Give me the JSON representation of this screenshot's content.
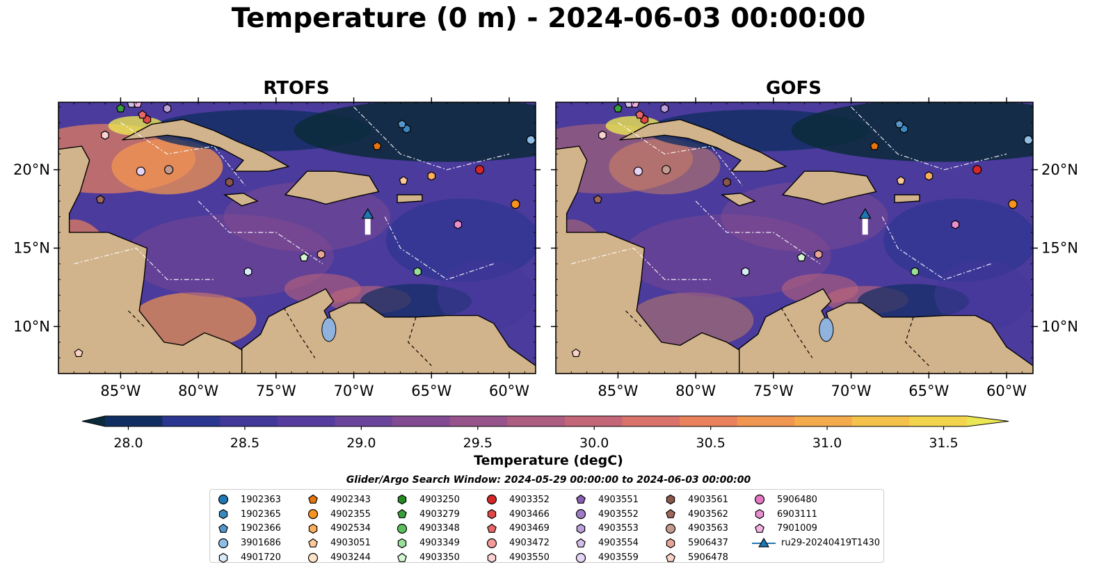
{
  "title": "Temperature (0 m) - 2024-06-03 00:00:00",
  "panels": [
    {
      "id": "rtofs",
      "title": "RTOFS"
    },
    {
      "id": "gofs",
      "title": "GOFS"
    }
  ],
  "chart_data": {
    "type": "heatmap",
    "subtype": "map-contour",
    "x_ticks": [
      "85°W",
      "80°W",
      "75°W",
      "70°W",
      "65°W",
      "60°W"
    ],
    "x_tick_values": [
      -85,
      -80,
      -75,
      -70,
      -65,
      -60
    ],
    "y_ticks": [
      "20°N",
      "15°N",
      "10°N"
    ],
    "y_tick_values": [
      20,
      15,
      10
    ],
    "xlim": [
      -89,
      -58.3
    ],
    "ylim": [
      7,
      24.3
    ],
    "colorbar": {
      "label": "Temperature (degC)",
      "range": [
        27.9,
        31.6
      ],
      "ticks": [
        "28.0",
        "28.5",
        "29.0",
        "29.5",
        "30.0",
        "30.5",
        "31.0",
        "31.5"
      ],
      "tick_values": [
        28.0,
        28.5,
        29.0,
        29.5,
        30.0,
        30.5,
        31.0,
        31.5
      ],
      "extend": "both",
      "colors": [
        "#0b2a3a",
        "#112e63",
        "#2a3690",
        "#41389a",
        "#553c9e",
        "#6b449b",
        "#824a92",
        "#97538b",
        "#ad5c82",
        "#c26678",
        "#d8726b",
        "#e9815c",
        "#f19650",
        "#f4ab4c",
        "#f4c24a",
        "#f3d54d",
        "#ebe653"
      ]
    },
    "search_window": "Glider/Argo Search Window: 2024-05-29 00:00:00 to 2024-06-03 00:00:00",
    "series": [
      {
        "name": "1902363",
        "marker": "circle",
        "color": "#1f77b4",
        "x": null,
        "y": null
      },
      {
        "name": "1902365",
        "marker": "hexagon",
        "color": "#3a88c0",
        "x": -66.6,
        "y": 22.6
      },
      {
        "name": "1902366",
        "marker": "pentagon",
        "color": "#5597cb",
        "x": -66.9,
        "y": 22.9
      },
      {
        "name": "3901686",
        "marker": "circle",
        "color": "#8fbde6",
        "x": -58.6,
        "y": 21.9
      },
      {
        "name": "4901720",
        "marker": "hexagon",
        "color": "#d8ebfb",
        "x": -76.8,
        "y": 13.5
      },
      {
        "name": "4902343",
        "marker": "pentagon",
        "color": "#e8740f",
        "x": -68.5,
        "y": 21.5
      },
      {
        "name": "4902355",
        "marker": "circle",
        "color": "#f7931e",
        "x": -59.6,
        "y": 17.8
      },
      {
        "name": "4902534",
        "marker": "hexagon",
        "color": "#fbae5c",
        "x": -65.0,
        "y": 19.6
      },
      {
        "name": "4903051",
        "marker": "pentagon",
        "color": "#fcc998",
        "x": -66.8,
        "y": 19.3
      },
      {
        "name": "4903244",
        "marker": "circle",
        "color": "#fde3c8",
        "x": null,
        "y": null
      },
      {
        "name": "4903250",
        "marker": "hexagon",
        "color": "#238b22",
        "x": null,
        "y": null
      },
      {
        "name": "4903279",
        "marker": "pentagon",
        "color": "#3aa03a",
        "x": -85.0,
        "y": 23.9
      },
      {
        "name": "4903348",
        "marker": "circle",
        "color": "#5cbf5c",
        "x": null,
        "y": null
      },
      {
        "name": "4903349",
        "marker": "hexagon",
        "color": "#98e098",
        "x": -65.9,
        "y": 13.5
      },
      {
        "name": "4903350",
        "marker": "pentagon",
        "color": "#d3f7d0",
        "x": -73.2,
        "y": 14.4
      },
      {
        "name": "4903352",
        "marker": "circle",
        "color": "#d62728",
        "x": -61.9,
        "y": 20.0
      },
      {
        "name": "4903466",
        "marker": "hexagon",
        "color": "#e04848",
        "x": -83.3,
        "y": 23.2
      },
      {
        "name": "4903469",
        "marker": "pentagon",
        "color": "#e86868",
        "x": -83.6,
        "y": 23.5
      },
      {
        "name": "4903472",
        "marker": "circle",
        "color": "#f39a9a",
        "x": null,
        "y": null
      },
      {
        "name": "4903550",
        "marker": "hexagon",
        "color": "#fbd3d3",
        "x": -86.0,
        "y": 22.2
      },
      {
        "name": "4903551",
        "marker": "pentagon",
        "color": "#8b5fb8",
        "x": null,
        "y": null
      },
      {
        "name": "4903552",
        "marker": "circle",
        "color": "#a07cc8",
        "x": null,
        "y": null
      },
      {
        "name": "4903553",
        "marker": "hexagon",
        "color": "#bca1dc",
        "x": -82.0,
        "y": 23.9
      },
      {
        "name": "4903554",
        "marker": "pentagon",
        "color": "#d4bfea",
        "x": -84.3,
        "y": 24.2
      },
      {
        "name": "4903559",
        "marker": "circle",
        "color": "#e6d4f7",
        "x": -83.7,
        "y": 19.9
      },
      {
        "name": "4903561",
        "marker": "hexagon",
        "color": "#8c564b",
        "x": -78.0,
        "y": 19.2
      },
      {
        "name": "4903562",
        "marker": "pentagon",
        "color": "#a0685c",
        "x": -86.3,
        "y": 18.1
      },
      {
        "name": "4903563",
        "marker": "circle",
        "color": "#c49b8f",
        "x": -81.9,
        "y": 20.0
      },
      {
        "name": "5906437",
        "marker": "hexagon",
        "color": "#e9a696",
        "x": -72.1,
        "y": 14.6
      },
      {
        "name": "5906478",
        "marker": "pentagon",
        "color": "#f9d2c5",
        "x": -87.7,
        "y": 8.3
      },
      {
        "name": "5906480",
        "marker": "circle",
        "color": "#e377c2",
        "x": null,
        "y": null
      },
      {
        "name": "6903111",
        "marker": "hexagon",
        "color": "#e98fd0",
        "x": -63.3,
        "y": 16.5
      },
      {
        "name": "7901009",
        "marker": "pentagon",
        "color": "#f3b2e2",
        "x": -83.9,
        "y": 24.2
      },
      {
        "name": "ru29-20240419T1430",
        "marker": "triangle",
        "color": "#1f77b4",
        "x": -69.1,
        "y": 17.1,
        "track": true
      }
    ]
  }
}
